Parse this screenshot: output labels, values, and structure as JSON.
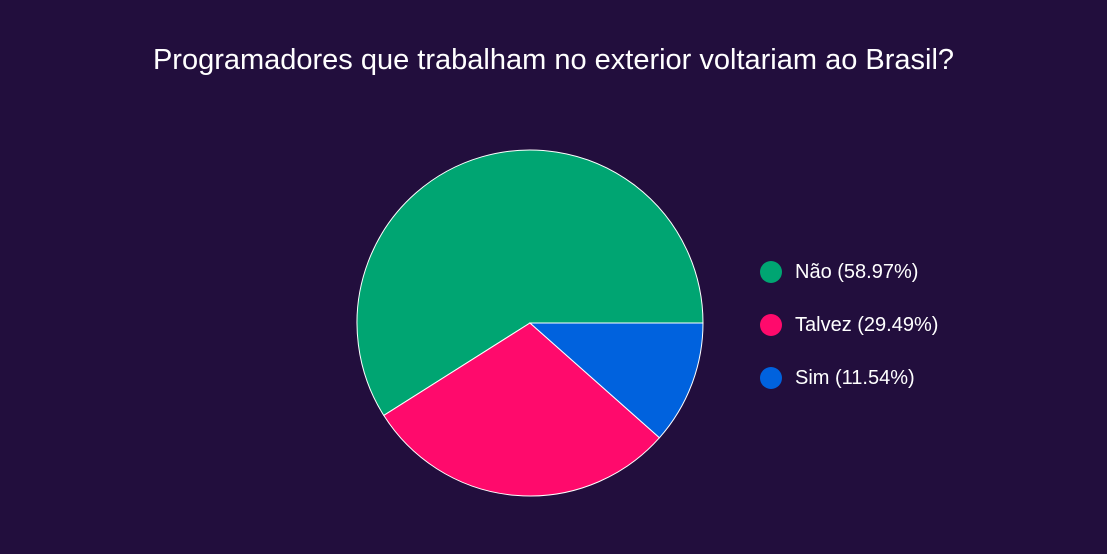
{
  "chart_data": {
    "type": "pie",
    "title": "Programadores que trabalham no exterior voltariam ao Brasil?",
    "slices": [
      {
        "label": "Não",
        "value": 58.97,
        "legend_text": "Não (58.97%)",
        "color": "#00a572"
      },
      {
        "label": "Talvez",
        "value": 29.49,
        "legend_text": "Talvez (29.49%)",
        "color": "#ff0a6c"
      },
      {
        "label": "Sim",
        "value": 11.54,
        "legend_text": "Sim (11.54%)",
        "color": "#0062de"
      }
    ],
    "legend_placement": "right"
  },
  "colors": {
    "background": "#220e3d",
    "text": "#ffffff",
    "slice_border": "#ffffff"
  }
}
